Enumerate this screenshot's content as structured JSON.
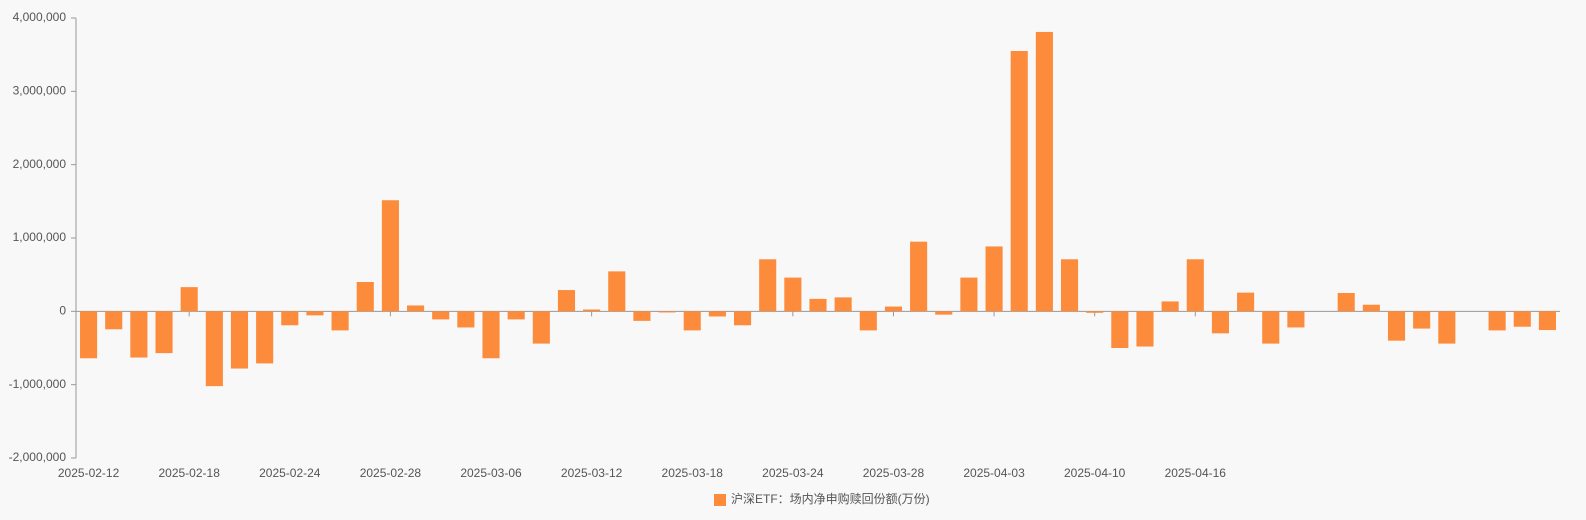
{
  "chart_data": {
    "type": "bar",
    "categories": [
      "2025-02-12",
      null,
      null,
      null,
      "2025-02-18",
      null,
      null,
      null,
      "2025-02-24",
      null,
      null,
      null,
      "2025-02-28",
      null,
      null,
      null,
      "2025-03-06",
      null,
      null,
      null,
      "2025-03-12",
      null,
      null,
      null,
      "2025-03-18",
      null,
      null,
      null,
      "2025-03-24",
      null,
      null,
      null,
      "2025-03-28",
      null,
      null,
      null,
      "2025-04-03",
      null,
      null,
      null,
      "2025-04-10",
      null,
      null,
      null,
      "2025-04-16",
      null,
      null,
      null,
      null,
      null,
      null,
      null,
      null,
      null,
      null,
      null,
      null,
      null,
      null
    ],
    "series": [
      {
        "name": "沪深ETF：场内净申购赎回份额(万份)",
        "color": "#fd8b3c",
        "values": [
          -640000,
          -245000,
          -630000,
          -570000,
          330000,
          -1020000,
          -780000,
          -710000,
          -190000,
          -55000,
          -260000,
          400000,
          1515000,
          80000,
          -110000,
          -220000,
          -640000,
          -110000,
          -440000,
          290000,
          25000,
          545000,
          -130000,
          -15000,
          -260000,
          -70000,
          -190000,
          710000,
          460000,
          170000,
          190000,
          -260000,
          65000,
          950000,
          -45000,
          460000,
          885000,
          3550000,
          3810000,
          710000,
          -20000,
          -500000,
          -480000,
          135000,
          710000,
          -300000,
          255000,
          -440000,
          -220000,
          0,
          250000,
          90000,
          -400000,
          -235000,
          -440000,
          0,
          -260000,
          -210000,
          -255000
        ]
      }
    ],
    "ylim": [
      -2000000,
      4000000
    ],
    "yticks": [
      {
        "value": -2000000,
        "label": "-2,000,000"
      },
      {
        "value": -1000000,
        "label": "-1,000,000"
      },
      0,
      {
        "value": 1000000,
        "label": "1,000,000"
      },
      {
        "value": 2000000,
        "label": "2,000,000"
      },
      {
        "value": 3000000,
        "label": "3,000,000"
      },
      {
        "value": 4000000,
        "label": "4,000,000"
      }
    ],
    "legend": "bottom"
  }
}
